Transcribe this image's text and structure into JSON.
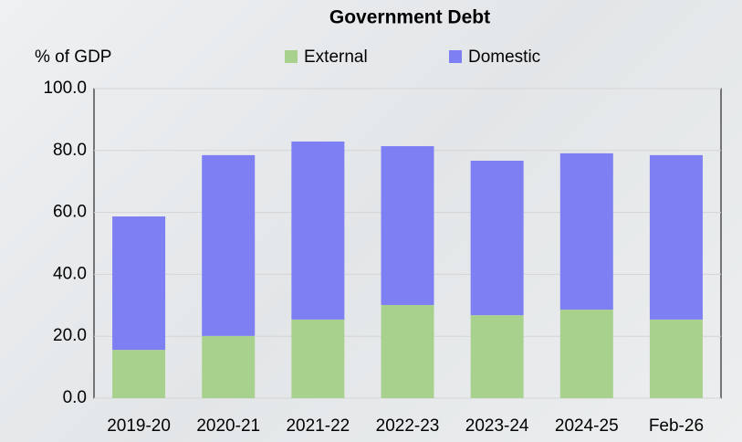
{
  "chart_data": {
    "type": "stacked_bar",
    "title": "Government Debt",
    "y_label": "% of GDP",
    "categories": [
      "2019-20",
      "2020-21",
      "2021-22",
      "2022-23",
      "2023-24",
      "2024-25",
      "Feb-26"
    ],
    "series": [
      {
        "name": "External",
        "color": "#a9d18e",
        "values": [
          15.6,
          20.1,
          25.4,
          30.1,
          26.8,
          28.6,
          25.4
        ]
      },
      {
        "name": "Domestic",
        "color": "#7f7ff4",
        "values": [
          43.1,
          58.4,
          57.5,
          51.3,
          49.9,
          50.5,
          53.1
        ]
      }
    ],
    "ylim": [
      0,
      100
    ],
    "yticks": [
      {
        "value": 0,
        "label": "0.0"
      },
      {
        "value": 20,
        "label": "20.0"
      },
      {
        "value": 40,
        "label": "40.0"
      },
      {
        "value": 60,
        "label": "60.0"
      },
      {
        "value": 80,
        "label": "80.0"
      },
      {
        "value": 100,
        "label": "100.0"
      }
    ],
    "grid": true,
    "legend": "top"
  }
}
